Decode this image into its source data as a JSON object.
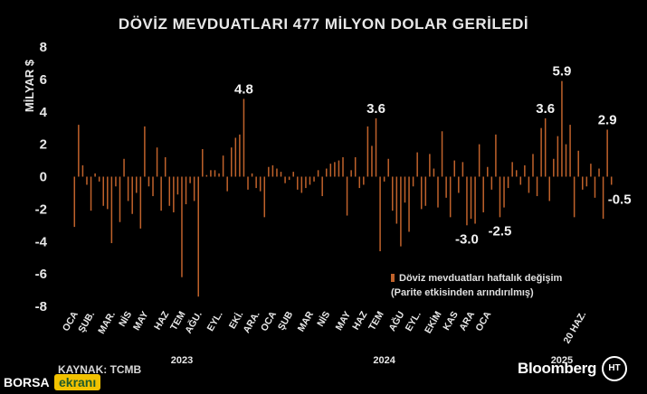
{
  "title": "DÖVİZ MEVDUATLARI 477 MİLYON DOLAR GERİLEDİ",
  "source": "KAYNAK: TCMB",
  "legend_line1": "Döviz mevduatları haftalık değişim",
  "legend_line2": "(Parite etkisinden arındırılmış)",
  "brand": "Bloomberg",
  "logo_text": "HT",
  "watermark_word1": "BORSA",
  "watermark_word2": "ekranı",
  "colors": {
    "bar": "#c0622b",
    "background": "#000000",
    "text": "#e8e8e8"
  },
  "chart_data": {
    "type": "bar",
    "ylabel": "MİLYAR $",
    "xlabel": "",
    "ylim": [
      -8,
      8
    ],
    "yticks": [
      8,
      6,
      4,
      2,
      0,
      -2,
      -4,
      -6,
      -8
    ],
    "month_labels": [
      "OCA",
      "ŞUB.",
      "MAR.",
      "NİS",
      "MAY",
      "HAZ",
      "TEM",
      "AĞU.",
      "EYL.",
      "EKİ.",
      "ARA.",
      "OCA",
      "ŞUB",
      "MAR",
      "NİS",
      "MAY",
      "HAZ",
      "TEM",
      "AĞU",
      "EYL.",
      "EKİM",
      "KAS",
      "ARA",
      "OCA",
      "20 HAZ."
    ],
    "month_start_index": [
      0,
      4,
      9,
      13,
      17,
      22,
      26,
      30,
      35,
      40,
      44,
      48,
      52,
      57,
      61,
      66,
      70,
      74,
      79,
      83,
      88,
      92,
      96,
      100,
      123
    ],
    "years": [
      {
        "label": "2023",
        "index": 26
      },
      {
        "label": "2024",
        "index": 75
      },
      {
        "label": "2025",
        "index": 118
      }
    ],
    "values": [
      -3.1,
      3.2,
      0.7,
      -0.5,
      -2.1,
      0.2,
      -0.3,
      -1.8,
      -2.0,
      -4.1,
      -0.6,
      -2.8,
      1.1,
      -1.5,
      -2.3,
      -1.0,
      -3.2,
      3.1,
      -0.6,
      -1.2,
      1.8,
      -2.1,
      1.2,
      -1.8,
      -2.2,
      -1.1,
      -6.2,
      -1.7,
      -0.4,
      -1.5,
      -7.4,
      1.7,
      0.1,
      0.4,
      0.4,
      0.2,
      1.3,
      -0.9,
      1.8,
      2.4,
      2.6,
      4.8,
      -0.8,
      0.2,
      -0.7,
      -0.9,
      -2.5,
      0.6,
      0.7,
      0.5,
      0.3,
      -0.4,
      -0.2,
      0.3,
      -0.8,
      -1.0,
      -0.7,
      -0.5,
      -0.3,
      0.4,
      -1.2,
      0.5,
      0.8,
      0.9,
      1.0,
      1.2,
      -2.4,
      0.4,
      1.2,
      -0.7,
      -0.5,
      3.1,
      1.9,
      3.6,
      -4.6,
      -0.3,
      1.1,
      -2.1,
      -2.9,
      -4.3,
      -1.6,
      -3.4,
      -0.6,
      1.5,
      -2.0,
      -1.8,
      1.4,
      0.5,
      -1.9,
      2.8,
      -1.3,
      -2.5,
      1.0,
      -1.0,
      0.9,
      -3.0,
      -2.6,
      -2.9,
      2.0,
      -2.2,
      0.6,
      -0.8,
      2.6,
      -2.5,
      -1.9,
      -0.7,
      0.9,
      0.4,
      -0.5,
      0.7,
      -1.0,
      1.4,
      -1.2,
      3.0,
      3.6,
      -1.5,
      1.1,
      2.5,
      5.9,
      2.0,
      3.2,
      -2.5,
      1.6,
      -0.8,
      -0.6,
      0.8,
      -1.3,
      0.5,
      -2.6,
      2.9,
      -0.5
    ],
    "annotations": [
      {
        "index": 41,
        "label": "4.8"
      },
      {
        "index": 73,
        "label": "3.6"
      },
      {
        "index": 95,
        "label": "-3.0"
      },
      {
        "index": 103,
        "label": "-2.5"
      },
      {
        "index": 114,
        "label": "3.6"
      },
      {
        "index": 118,
        "label": "5.9"
      },
      {
        "index": 129,
        "label": "2.9"
      },
      {
        "index": 130,
        "label": "-0.5"
      }
    ]
  }
}
